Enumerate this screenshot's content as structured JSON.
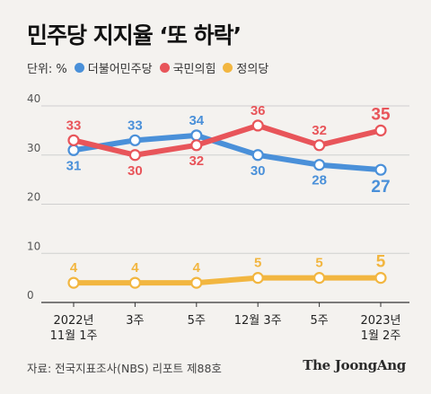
{
  "title": "민주당 지지율 ‘또 하락’",
  "legend": {
    "unit_label": "단위: %",
    "items": [
      {
        "name": "더불어민주당",
        "color": "#4a90d9"
      },
      {
        "name": "국민의힘",
        "color": "#e8555a"
      },
      {
        "name": "정의당",
        "color": "#f2b640"
      }
    ]
  },
  "source": "자료: 전국지표조사(NBS) 리포트 제88호",
  "brand": "The JoongAng",
  "chart_data": {
    "type": "line",
    "categories": [
      [
        "2022년",
        "11월 1주"
      ],
      [
        "3주"
      ],
      [
        "5주"
      ],
      [
        "12월 3주"
      ],
      [
        "5주"
      ],
      [
        "2023년",
        "1월 2주"
      ]
    ],
    "ylim": [
      0,
      40
    ],
    "yticks": [
      0,
      10,
      20,
      30,
      40
    ],
    "grid": true,
    "legend_position": "top-left",
    "series": [
      {
        "name": "더불어민주당",
        "color": "#4a90d9",
        "values": [
          31,
          33,
          34,
          30,
          28,
          27
        ],
        "label_position": [
          "below",
          "above",
          "above",
          "below",
          "below",
          "below"
        ]
      },
      {
        "name": "국민의힘",
        "color": "#e8555a",
        "values": [
          33,
          30,
          32,
          36,
          32,
          35
        ],
        "label_position": [
          "above",
          "below",
          "below",
          "above",
          "above",
          "above"
        ]
      },
      {
        "name": "정의당",
        "color": "#f2b640",
        "values": [
          4,
          4,
          4,
          5,
          5,
          5
        ],
        "label_position": [
          "above",
          "above",
          "above",
          "above",
          "above",
          "above"
        ]
      }
    ]
  }
}
